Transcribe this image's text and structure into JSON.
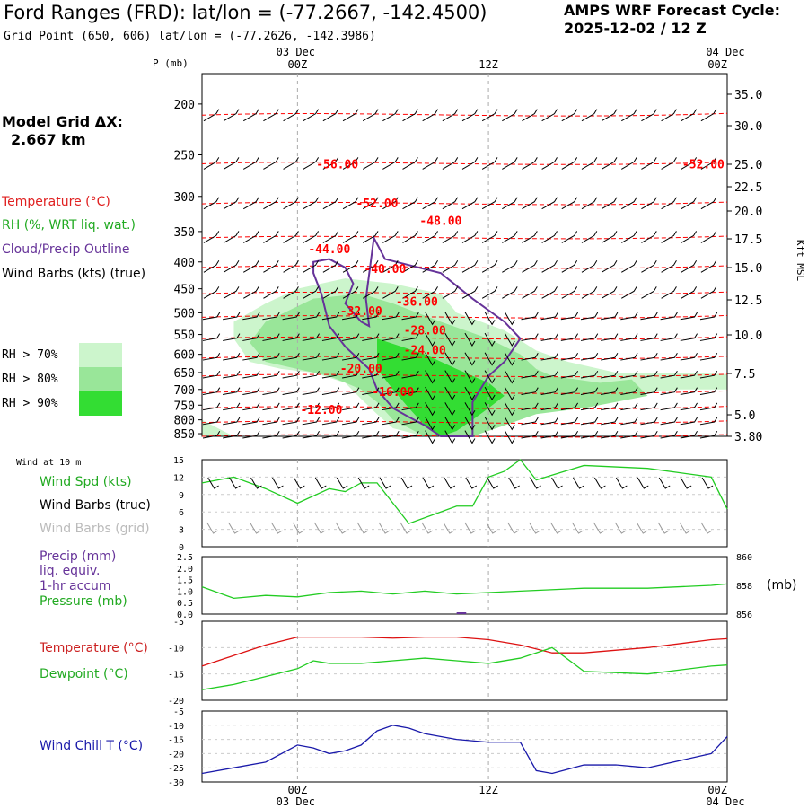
{
  "header": {
    "title": "Ford Ranges (FRD):  lat/lon = (-77.2667, -142.4500)",
    "subtitle": "Grid Point (650, 606) lat/lon = (-77.2626, -142.3986)",
    "cycle_line1": "AMPS WRF Forecast Cycle:",
    "cycle_line2": "2025-12-02 / 12  Z"
  },
  "grid": {
    "label": "Model Grid ΔX:",
    "value": "2.667 km"
  },
  "legend": {
    "temperature": "Temperature (°C)",
    "rh": "RH (%, WRT liq. wat.)",
    "cloud": "Cloud/Precip Outline",
    "wind": "Wind Barbs (kts) (true)",
    "rh70": "RH > 70%",
    "rh80": "RH > 80%",
    "rh90": "RH > 90%"
  },
  "colors": {
    "temperature": "#ff0000",
    "rh": "#22cc22",
    "cloud": "#663399",
    "rh70": "#ccf5cc",
    "rh80": "#99e699",
    "rh90": "#33dd33",
    "windchill": "#1a1aaa",
    "grid": "#aaaaaa"
  },
  "time_axis": {
    "top_left_date": "03 Dec",
    "top_right_date": "04 Dec",
    "bottom_left_date": "03 Dec",
    "bottom_right_date": "04 Dec",
    "ticks": [
      "00Z",
      "12Z",
      "00Z"
    ]
  },
  "chart_data": [
    {
      "type": "heatmap",
      "name": "cross-section",
      "p_label": "P (mb)",
      "pressure_levels": [
        "200",
        "250",
        "300",
        "350",
        "400",
        "450",
        "500",
        "550",
        "600",
        "650",
        "700",
        "750",
        "800",
        "850"
      ],
      "height_label": "Kft MSL",
      "height_ticks": [
        "35.0",
        "30.0",
        "25.0",
        "22.5",
        "20.0",
        "17.5",
        "15.0",
        "12.5",
        "10.0",
        "7.5",
        "5.0",
        "3.80"
      ],
      "x_range_hours": [
        -6,
        27
      ],
      "temperature_labels": [
        {
          "text": "-56.00",
          "hour": 2.5,
          "p": 265
        },
        {
          "text": "-52.00",
          "hour": 25.5,
          "p": 265
        },
        {
          "text": "-52.00",
          "hour": 5,
          "p": 315
        },
        {
          "text": "-48.00",
          "hour": 9,
          "p": 340
        },
        {
          "text": "-44.00",
          "hour": 2,
          "p": 385
        },
        {
          "text": "-40.00",
          "hour": 5.5,
          "p": 420
        },
        {
          "text": "-36.00",
          "hour": 7.5,
          "p": 485
        },
        {
          "text": "-32.00",
          "hour": 4,
          "p": 505
        },
        {
          "text": "-28.00",
          "hour": 8,
          "p": 550
        },
        {
          "text": "-24.00",
          "hour": 8,
          "p": 600
        },
        {
          "text": "-20.00",
          "hour": 4,
          "p": 650
        },
        {
          "text": "-16.00",
          "hour": 6,
          "p": 720
        },
        {
          "text": "-12.00",
          "hour": 1.5,
          "p": 780
        }
      ]
    },
    {
      "type": "line",
      "name": "wind-speed",
      "header": "Wind at 10 m",
      "labels": [
        "Wind Spd (kts)",
        "Wind Barbs (true)",
        "Wind Barbs (grid)"
      ],
      "yticks": [
        "15",
        "12",
        "9",
        "6",
        "3",
        "0"
      ],
      "ylim": [
        0,
        15
      ],
      "series": [
        {
          "name": "Wind Spd (kts)",
          "x": [
            -6,
            -4,
            -2,
            0,
            2,
            3,
            4,
            5,
            7,
            10,
            11,
            12,
            13,
            14,
            15,
            18,
            22,
            26,
            27
          ],
          "values": [
            11,
            12,
            10,
            7.5,
            10,
            9.5,
            11,
            11,
            4,
            7,
            7,
            12,
            13,
            15,
            11.5,
            14,
            13.5,
            12,
            6.5
          ]
        }
      ]
    },
    {
      "type": "line",
      "name": "precip-pressure",
      "labels": [
        "Precip (mm)",
        "liq. equiv.",
        "1-hr accum",
        "Pressure (mb)"
      ],
      "yticks_left": [
        "2.5",
        "2.0",
        "1.5",
        "1.0",
        "0.5",
        "0.0"
      ],
      "yticks_right": [
        "860",
        "858",
        "856"
      ],
      "right_unit": "(mb)",
      "series": [
        {
          "name": "Pressure (mb)",
          "x": [
            -6,
            -4,
            -2,
            0,
            2,
            4,
            6,
            8,
            10,
            12,
            14,
            18,
            22,
            26,
            27
          ],
          "values": [
            857.9,
            857.1,
            857.3,
            857.2,
            857.5,
            857.6,
            857.4,
            857.6,
            857.4,
            857.5,
            857.6,
            857.8,
            857.8,
            858.0,
            858.1
          ]
        }
      ]
    },
    {
      "type": "line",
      "name": "temperature-dewpoint",
      "labels": [
        "Temperature (°C)",
        "Dewpoint (°C)"
      ],
      "yticks": [
        "-5",
        "-10",
        "-15",
        "-20"
      ],
      "ylim": [
        -20,
        -5
      ],
      "series": [
        {
          "name": "Temperature (°C)",
          "x": [
            -6,
            -4,
            -2,
            0,
            2,
            4,
            6,
            8,
            10,
            12,
            14,
            16,
            18,
            22,
            26,
            27
          ],
          "values": [
            -13.5,
            -11.5,
            -9.5,
            -8,
            -8,
            -8,
            -8.2,
            -8,
            -8,
            -8.5,
            -9.5,
            -11,
            -11,
            -10,
            -8.5,
            -8.3
          ]
        },
        {
          "name": "Dewpoint (°C)",
          "x": [
            -6,
            -4,
            -2,
            0,
            1,
            2,
            4,
            6,
            8,
            10,
            12,
            14,
            16,
            18,
            22,
            26,
            27
          ],
          "values": [
            -18,
            -17,
            -15.5,
            -14,
            -12.5,
            -13,
            -13,
            -12.5,
            -12,
            -12.5,
            -13,
            -12,
            -10,
            -14.5,
            -15,
            -13.5,
            -13.3
          ]
        }
      ]
    },
    {
      "type": "line",
      "name": "wind-chill",
      "labels": [
        "Wind Chill T (°C)"
      ],
      "yticks": [
        "-5",
        "-10",
        "-15",
        "-20",
        "-25",
        "-30"
      ],
      "ylim": [
        -30,
        -5
      ],
      "series": [
        {
          "name": "Wind Chill T (°C)",
          "x": [
            -6,
            -4,
            -2,
            0,
            1,
            2,
            3,
            4,
            5,
            6,
            7,
            8,
            10,
            12,
            14,
            15,
            16,
            18,
            20,
            22,
            26,
            27
          ],
          "values": [
            -27,
            -25,
            -23,
            -17,
            -18,
            -20,
            -19,
            -17,
            -12,
            -10,
            -11,
            -13,
            -15,
            -16,
            -16,
            -26,
            -27,
            -24,
            -24,
            -25,
            -20,
            -14
          ]
        }
      ]
    }
  ]
}
